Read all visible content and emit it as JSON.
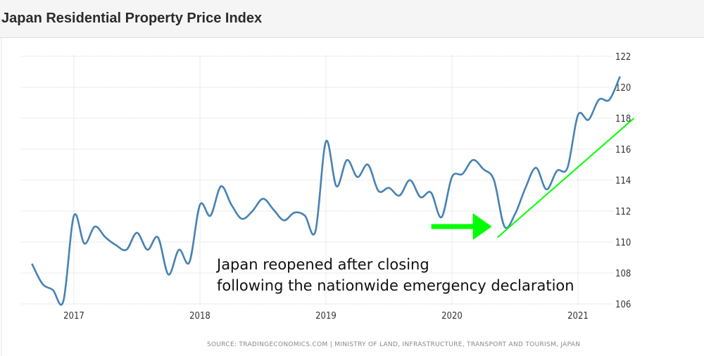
{
  "chart_data": {
    "type": "line",
    "title": "Japan Residential Property Price Index",
    "source": "SOURCE: TRADINGECONOMICS.COM | MINISTRY OF LAND, INFRASTRUCTURE, TRANSPORT AND TOURISM, JAPAN",
    "xlabel": "",
    "ylabel": "",
    "ylim": [
      106,
      122
    ],
    "yticks": [
      "106",
      "108",
      "110",
      "112",
      "114",
      "116",
      "118",
      "120",
      "122"
    ],
    "xticks": [
      "2017",
      "2018",
      "2019",
      "2020",
      "2021"
    ],
    "grid": true,
    "y_axis_side": "right",
    "line_color": "#4682b4",
    "series": [
      {
        "x": [
          "2016-09",
          "2016-10",
          "2016-11",
          "2016-12",
          "2017-01",
          "2017-02",
          "2017-03",
          "2017-04",
          "2017-05",
          "2017-06",
          "2017-07",
          "2017-08",
          "2017-09",
          "2017-10",
          "2017-11",
          "2017-12",
          "2018-01",
          "2018-02",
          "2018-03",
          "2018-04",
          "2018-05",
          "2018-06",
          "2018-07",
          "2018-08",
          "2018-09",
          "2018-10",
          "2018-11",
          "2018-12",
          "2019-01",
          "2019-02",
          "2019-03",
          "2019-04",
          "2019-05",
          "2019-06",
          "2019-07",
          "2019-08",
          "2019-09",
          "2019-10",
          "2019-11",
          "2019-12",
          "2020-01",
          "2020-02",
          "2020-03",
          "2020-04",
          "2020-05",
          "2020-06",
          "2020-07",
          "2020-08",
          "2020-09",
          "2020-10",
          "2020-11",
          "2020-12",
          "2021-01",
          "2021-02",
          "2021-03",
          "2021-04",
          "2021-05"
        ],
        "values": [
          108.6,
          107.3,
          106.9,
          106.2,
          111.7,
          109.9,
          111.0,
          110.3,
          109.8,
          109.5,
          110.6,
          109.5,
          110.3,
          107.9,
          109.5,
          108.7,
          112.4,
          111.7,
          113.6,
          112.4,
          111.5,
          112.0,
          112.8,
          112.1,
          111.4,
          111.9,
          111.7,
          110.7,
          116.5,
          113.6,
          115.3,
          114.2,
          115.0,
          113.3,
          113.5,
          113.0,
          114.0,
          112.9,
          113.2,
          111.6,
          114.2,
          114.4,
          115.3,
          114.7,
          114.0,
          111.0,
          111.8,
          113.5,
          114.8,
          113.4,
          114.6,
          114.8,
          118.2,
          117.9,
          119.2,
          119.2,
          120.7
        ]
      }
    ],
    "annotations": {
      "text_lines": [
        "Japan reopened after closing",
        "following the nationwide emergency declaration"
      ],
      "arrow_color": "#00ff00",
      "trend_line": {
        "color": "#00ff00",
        "from": [
          "2020-05",
          110.3
        ],
        "to": [
          "2021-06",
          118.0
        ]
      },
      "arrow_target": [
        "2020-05",
        111.0
      ]
    }
  }
}
